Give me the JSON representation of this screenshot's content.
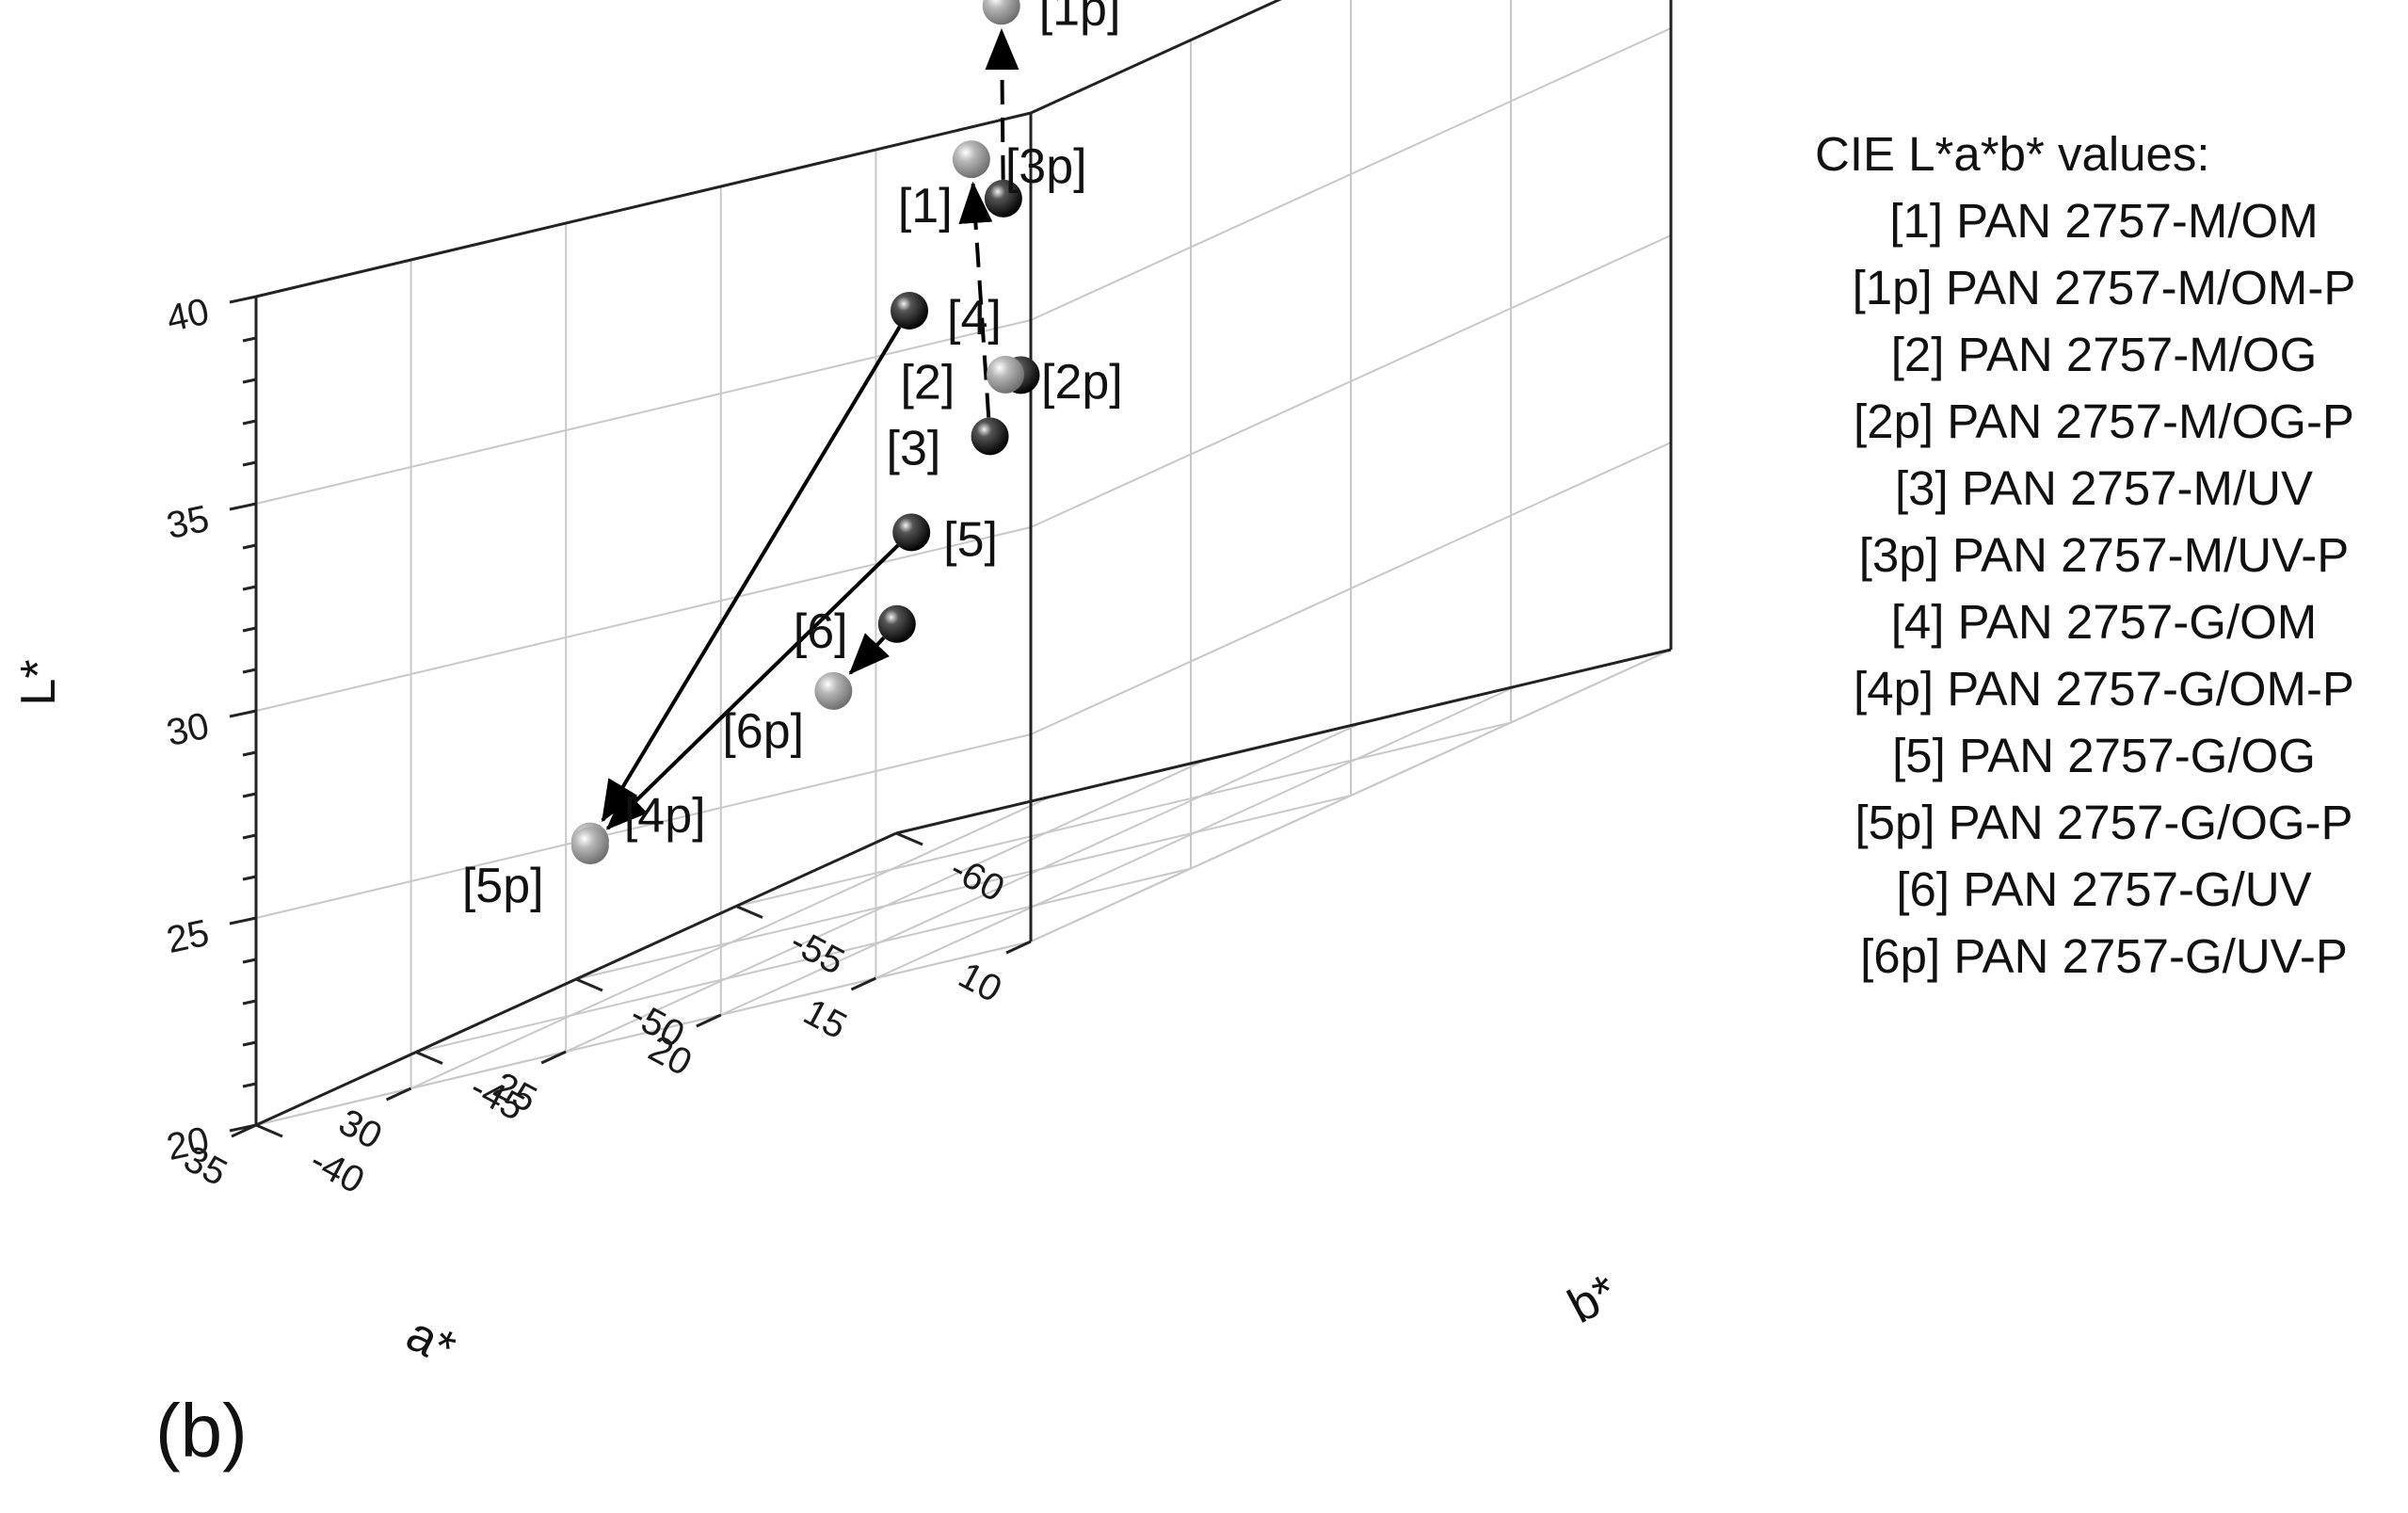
{
  "chart_data": {
    "type": "scatter",
    "title": "",
    "panel_label": "(b)",
    "xlabel": "a*",
    "ylabel": "b*",
    "zlabel": "L*",
    "xlim": [
      10,
      35
    ],
    "ylim": [
      -60,
      -40
    ],
    "zlim": [
      20,
      40
    ],
    "x_ticks": [
      "10",
      "15",
      "20",
      "25",
      "30",
      "35"
    ],
    "y_ticks": [
      "-40",
      "-45",
      "-50",
      "-55",
      "-60"
    ],
    "z_ticks": [
      "20",
      "25",
      "30",
      "35",
      "40"
    ],
    "grid": true,
    "legend_position": "right",
    "legend_title": "CIE L*a*b* values:",
    "legend_items": [
      "[1] PAN 2757-M/OM",
      "[1p] PAN 2757-M/OM-P",
      "[2] PAN 2757-M/OG",
      "[2p] PAN 2757-M/OG-P",
      "[3] PAN 2757-M/UV",
      "[3p] PAN 2757-M/UV-P",
      "[4] PAN 2757-G/OM",
      "[4p] PAN 2757-G/OM-P",
      "[5] PAN 2757-G/OG",
      "[5p] PAN 2757-G/OG-P",
      "[6] PAN 2757-G/UV",
      "[6p] PAN 2757-G/UV-P"
    ],
    "points": [
      {
        "label": "[1]",
        "a": 14.5,
        "b": -43.5,
        "L": 37.5,
        "series": "untreated"
      },
      {
        "label": "[1p]",
        "a": 12.5,
        "b": -41.5,
        "L": 42.5,
        "series": "treated"
      },
      {
        "label": "[2]",
        "a": 16.0,
        "b": -45.5,
        "L": 32.8,
        "series": "untreated"
      },
      {
        "label": "[2p]",
        "a": 16.5,
        "b": -45.5,
        "L": 32.9,
        "series": "treated"
      },
      {
        "label": "[3]",
        "a": 17.0,
        "b": -45.5,
        "L": 31.5,
        "series": "untreated"
      },
      {
        "label": "[3p]",
        "a": 14.5,
        "b": -42.5,
        "L": 38.8,
        "series": "treated"
      },
      {
        "label": "[4]",
        "a": 16.5,
        "b": -42.5,
        "L": 35.5,
        "series": "untreated"
      },
      {
        "label": "[4p]",
        "a": 33.0,
        "b": -48.5,
        "L": 23.5,
        "series": "treated"
      },
      {
        "label": "[5]",
        "a": 18.5,
        "b": -44.5,
        "L": 29.8,
        "series": "untreated"
      },
      {
        "label": "[5p]",
        "a": 33.0,
        "b": -48.5,
        "L": 23.4,
        "series": "treated"
      },
      {
        "label": "[6]",
        "a": 20.0,
        "b": -45.5,
        "L": 27.5,
        "series": "untreated"
      },
      {
        "label": "[6p]",
        "a": 20.5,
        "b": -44.0,
        "L": 26.5,
        "series": "treated"
      }
    ],
    "arrows": [
      {
        "from": "[1]",
        "to": "[1p]",
        "style": "dashed"
      },
      {
        "from": "[3]",
        "to": "[3p]",
        "style": "dashed"
      },
      {
        "from": "[4]",
        "to": "[4p]",
        "style": "solid"
      },
      {
        "from": "[5]",
        "to": "[5p]",
        "style": "solid"
      },
      {
        "from": "[6]",
        "to": "[6p]",
        "style": "solid"
      }
    ],
    "colors": {
      "untreated": "#000000",
      "treated": "#9a9a9a"
    }
  }
}
